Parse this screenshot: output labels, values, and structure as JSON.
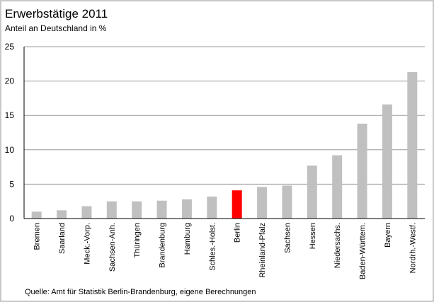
{
  "header": {
    "title": "Erwerbstätige 2011",
    "subtitle": "Anteil an Deutschland in %"
  },
  "footer": {
    "source": "Quelle: Amt für Statistik Berlin-Brandenburg, eigene Berechnungen"
  },
  "chart_data": {
    "type": "bar",
    "title": "Erwerbstätige 2011",
    "subtitle": "Anteil an Deutschland in %",
    "xlabel": "",
    "ylabel": "",
    "ylim": [
      0,
      25
    ],
    "yticks": [
      0,
      5,
      10,
      15,
      20,
      25
    ],
    "grid": true,
    "legend": "none",
    "categories": [
      "Bremen",
      "Saarland",
      "Meck.-Vorp.",
      "Sachsen-Anh.",
      "Thüringen",
      "Brandenburg",
      "Hamburg",
      "Schles.-Holst.",
      "Berlin",
      "Rheinland-Pfalz",
      "Sachsen",
      "Hessen",
      "Niedersachs.",
      "Baden-Württem.",
      "Bayern",
      "Nordrh.-Westf."
    ],
    "values": [
      1.0,
      1.2,
      1.8,
      2.5,
      2.5,
      2.6,
      2.8,
      3.2,
      4.1,
      4.6,
      4.8,
      7.7,
      9.2,
      13.8,
      16.6,
      21.3
    ],
    "colors": {
      "bar": "#c0c0c0",
      "highlight": "#ff0000",
      "grid": "#999999"
    },
    "highlight_category": "Berlin"
  }
}
